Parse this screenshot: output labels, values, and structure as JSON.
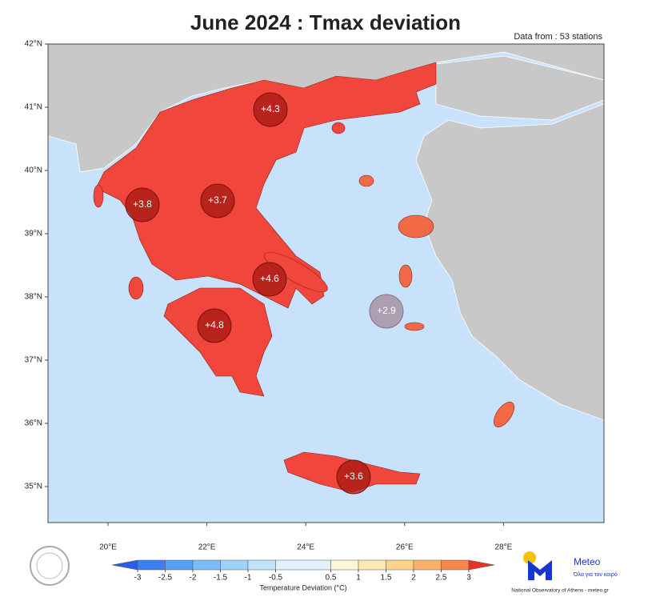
{
  "map": {
    "title": "June 2024 : Tmax deviation",
    "subtitle": "Data from : 53 stations",
    "lat_ticks": [
      {
        "value": 42,
        "label": "42°N"
      },
      {
        "value": 41,
        "label": "41°N"
      },
      {
        "value": 40,
        "label": "40°N"
      },
      {
        "value": 39,
        "label": "39°N"
      },
      {
        "value": 38,
        "label": "38°N"
      },
      {
        "value": 37,
        "label": "37°N"
      },
      {
        "value": 36,
        "label": "36°N"
      },
      {
        "value": 35,
        "label": "35°N"
      }
    ],
    "lon_ticks": [
      {
        "value": 20,
        "label": "20°E"
      },
      {
        "value": 22,
        "label": "22°E"
      },
      {
        "value": 24,
        "label": "24°E"
      },
      {
        "value": 26,
        "label": "26°E"
      },
      {
        "value": 28,
        "label": "28°E"
      }
    ],
    "stations": [
      {
        "value": 4.3,
        "label": "+4.3"
      },
      {
        "value": 3.8,
        "label": "+3.8"
      },
      {
        "value": 3.7,
        "label": "+3.7"
      },
      {
        "value": 4.6,
        "label": "+4.6"
      },
      {
        "value": 4.8,
        "label": "+4.8"
      },
      {
        "value": 2.9,
        "label": "+2.9"
      },
      {
        "value": 3.6,
        "label": "+3.6"
      }
    ],
    "colorbar": {
      "label": "Temperature Deviation (°C)",
      "ticks": [
        -3,
        -2.5,
        -2,
        -1.5,
        -1,
        -0.5,
        0.5,
        1,
        1.5,
        2,
        2.5,
        3
      ],
      "colors": [
        "#2a5ce8",
        "#3d7ef0",
        "#55a0f5",
        "#79bdf8",
        "#9dd2fb",
        "#c0e3fc",
        "#e2f2fd",
        "#fdf6d8",
        "#fce9b0",
        "#fbd38a",
        "#f9b26b",
        "#f58650",
        "#e83226"
      ]
    },
    "logo": {
      "name": "Meteo",
      "tagline": "Όλα για τον καιρό",
      "credit": "National Observatory of Athens - meteo.gr"
    }
  }
}
